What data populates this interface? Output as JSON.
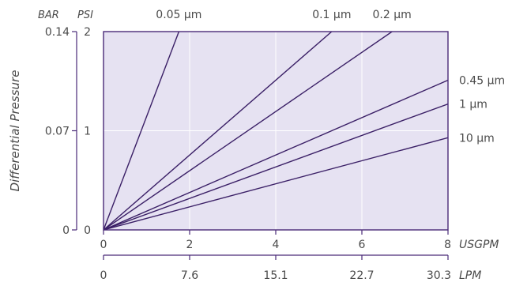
{
  "chart_data": {
    "type": "line",
    "ylabel": "Differential Pressure",
    "y_units": {
      "left": "BAR",
      "right": "PSI"
    },
    "y_ticks_bar": [
      "0.14",
      "0.07",
      "0"
    ],
    "y_ticks_psi": [
      "2",
      "1",
      "0"
    ],
    "ylim_psi": [
      0,
      2
    ],
    "x_units": {
      "top": "USGPM",
      "bottom": "LPM"
    },
    "x_ticks_usgpm": [
      "0",
      "2",
      "4",
      "6",
      "8"
    ],
    "x_ticks_lpm": [
      "0",
      "7.6",
      "15.1",
      "22.7",
      "30.3"
    ],
    "xlim_usgpm": [
      0,
      8
    ],
    "grid": true,
    "series": [
      {
        "name": "0.05 µm",
        "points": [
          [
            0,
            0
          ],
          [
            1.75,
            2.0
          ]
        ]
      },
      {
        "name": "0.1 µm",
        "points": [
          [
            0,
            0
          ],
          [
            5.3,
            2.0
          ]
        ]
      },
      {
        "name": "0.2 µm",
        "points": [
          [
            0,
            0
          ],
          [
            6.7,
            2.0
          ]
        ]
      },
      {
        "name": "0.45 µm",
        "points": [
          [
            0,
            0
          ],
          [
            8,
            1.51
          ]
        ]
      },
      {
        "name": "1 µm",
        "points": [
          [
            0,
            0
          ],
          [
            8,
            1.27
          ]
        ]
      },
      {
        "name": "10 µm",
        "points": [
          [
            0,
            0
          ],
          [
            8,
            0.93
          ]
        ]
      }
    ],
    "colors": {
      "plot_background": "#e6e2f2",
      "line": "#3a1f66",
      "axis": "#4a2a78",
      "text": "#4a4a4a",
      "grid": "#ffffff"
    }
  }
}
